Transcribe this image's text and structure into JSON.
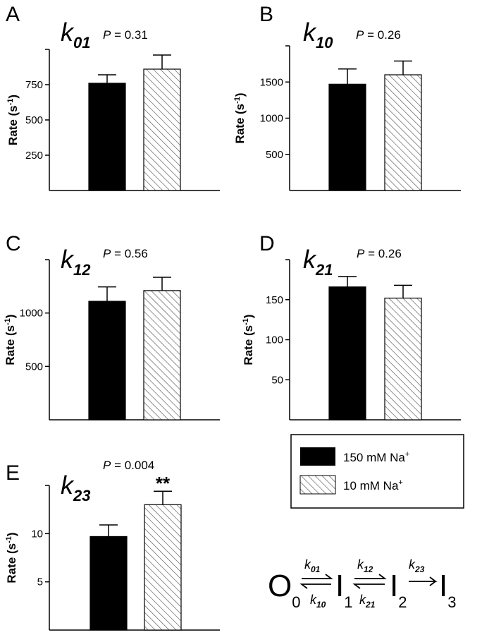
{
  "chart_data": [
    {
      "type": "bar",
      "panel": "A",
      "rate_symbol": "k",
      "rate_subscript": "01",
      "p_label": "P",
      "p_value": "= 0.31",
      "ylabel": "Rate (s",
      "ylabel_exp": "-1",
      "ylabel_close": ")",
      "ylim": [
        0,
        1000
      ],
      "yticks": [
        250,
        500,
        750
      ],
      "ytick_labels": [
        "250",
        "500",
        "750"
      ],
      "categories": [
        "150 mM Na+",
        "10 mM Na+"
      ],
      "values": [
        760,
        860
      ],
      "errors": [
        60,
        100
      ],
      "annotation": ""
    },
    {
      "type": "bar",
      "panel": "B",
      "rate_symbol": "k",
      "rate_subscript": "10",
      "p_label": "P",
      "p_value": "= 0.26",
      "ylabel": "Rate (s",
      "ylabel_exp": "-1",
      "ylabel_close": ")",
      "ylim": [
        0,
        2000
      ],
      "yticks": [
        500,
        1000,
        1500
      ],
      "ytick_labels": [
        "500",
        "1000",
        "1500"
      ],
      "categories": [
        "150 mM Na+",
        "10 mM Na+"
      ],
      "values": [
        1470,
        1600
      ],
      "errors": [
        210,
        190
      ],
      "annotation": ""
    },
    {
      "type": "bar",
      "panel": "C",
      "rate_symbol": "k",
      "rate_subscript": "12",
      "p_label": "P",
      "p_value": "= 0.56",
      "ylabel": "Rate (s",
      "ylabel_exp": "-1",
      "ylabel_close": ")",
      "ylim": [
        0,
        1500
      ],
      "yticks": [
        500,
        1000
      ],
      "ytick_labels": [
        "500",
        "1000"
      ],
      "categories": [
        "150 mM Na+",
        "10 mM Na+"
      ],
      "values": [
        1110,
        1210
      ],
      "errors": [
        135,
        125
      ],
      "annotation": ""
    },
    {
      "type": "bar",
      "panel": "D",
      "rate_symbol": "k",
      "rate_subscript": "21",
      "p_label": "P",
      "p_value": "= 0.26",
      "ylabel": "Rate (s",
      "ylabel_exp": "-1",
      "ylabel_close": ")",
      "ylim": [
        0,
        200
      ],
      "yticks": [
        50,
        100,
        150
      ],
      "ytick_labels": [
        "50",
        "100",
        "150"
      ],
      "categories": [
        "150 mM Na+",
        "10 mM Na+"
      ],
      "values": [
        166,
        152
      ],
      "errors": [
        13,
        16
      ],
      "annotation": ""
    },
    {
      "type": "bar",
      "panel": "E",
      "rate_symbol": "k",
      "rate_subscript": "23",
      "p_label": "P",
      "p_value": "= 0.004",
      "ylabel": "Rate (s",
      "ylabel_exp": "-1",
      "ylabel_close": ")",
      "ylim": [
        0,
        15
      ],
      "yticks": [
        5,
        10
      ],
      "ytick_labels": [
        "5",
        "10"
      ],
      "categories": [
        "150 mM Na+",
        "10 mM Na+"
      ],
      "values": [
        9.7,
        13.0
      ],
      "errors": [
        1.2,
        1.4
      ],
      "annotation": "**"
    }
  ],
  "legend": {
    "items": [
      {
        "label": "150 mM Na",
        "sup": "+",
        "fill": "solid"
      },
      {
        "label": "10 mM Na",
        "sup": "+",
        "fill": "hatched"
      }
    ]
  },
  "scheme": {
    "states": [
      {
        "letter": "O",
        "sub": "0"
      },
      {
        "letter": "I",
        "sub": "1"
      },
      {
        "letter": "I",
        "sub": "2"
      },
      {
        "letter": "I",
        "sub": "3"
      }
    ],
    "forward": [
      {
        "k": "k",
        "sub": "01"
      },
      {
        "k": "k",
        "sub": "12"
      },
      {
        "k": "k",
        "sub": "23"
      }
    ],
    "backward": [
      {
        "k": "k",
        "sub": "10"
      },
      {
        "k": "k",
        "sub": "21"
      }
    ]
  },
  "colors": {
    "bar_solid": "#000000",
    "hatch": "#555555",
    "axis": "#000000"
  }
}
